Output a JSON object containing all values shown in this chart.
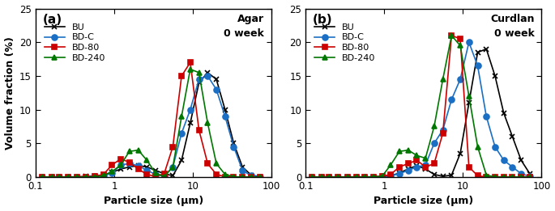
{
  "panel_a": {
    "title": "Agar\n0 week",
    "label": "(a)",
    "BU": {
      "x": [
        0.12,
        0.16,
        0.2,
        0.26,
        0.34,
        0.44,
        0.57,
        0.73,
        0.94,
        1.21,
        1.56,
        2.02,
        2.6,
        3.35,
        4.32,
        5.57,
        7.19,
        9.27,
        11.96,
        15.43,
        19.9,
        25.67,
        33.11,
        42.71,
        55.08,
        71.05
      ],
      "y": [
        0.0,
        0.0,
        0.0,
        0.0,
        0.05,
        0.1,
        0.15,
        0.35,
        0.7,
        1.2,
        1.5,
        1.7,
        1.5,
        1.0,
        0.5,
        0.2,
        2.5,
        8.0,
        14.0,
        15.5,
        14.5,
        10.0,
        5.0,
        1.5,
        0.3,
        0.05
      ]
    },
    "BD_C": {
      "x": [
        0.12,
        0.16,
        0.2,
        0.26,
        0.34,
        0.44,
        0.57,
        0.73,
        0.94,
        1.21,
        1.56,
        2.02,
        2.6,
        3.35,
        4.32,
        5.57,
        7.19,
        9.27,
        11.96,
        15.43,
        19.9,
        25.67,
        33.11,
        42.71,
        55.08,
        71.05
      ],
      "y": [
        0.0,
        0.0,
        0.0,
        0.0,
        0.0,
        0.05,
        0.1,
        0.2,
        0.6,
        1.8,
        2.0,
        1.7,
        1.0,
        0.4,
        0.15,
        1.5,
        6.5,
        10.0,
        14.5,
        15.0,
        13.0,
        9.0,
        4.5,
        1.0,
        0.2,
        0.05
      ]
    },
    "BD_80": {
      "x": [
        0.12,
        0.16,
        0.2,
        0.26,
        0.34,
        0.44,
        0.57,
        0.73,
        0.94,
        1.21,
        1.56,
        2.02,
        2.6,
        3.35,
        4.32,
        5.57,
        7.19,
        9.27,
        11.96,
        15.43,
        19.9,
        25.67,
        33.11,
        42.71,
        55.08,
        71.05
      ],
      "y": [
        0.0,
        0.0,
        0.0,
        0.0,
        0.0,
        0.05,
        0.1,
        0.4,
        1.8,
        2.7,
        2.2,
        1.2,
        0.4,
        0.1,
        0.5,
        4.5,
        15.0,
        17.0,
        7.0,
        2.0,
        0.4,
        0.05,
        0.0,
        0.0,
        0.0,
        0.0
      ]
    },
    "BD_240": {
      "x": [
        0.12,
        0.16,
        0.2,
        0.26,
        0.34,
        0.44,
        0.57,
        0.73,
        0.94,
        1.21,
        1.56,
        2.02,
        2.6,
        3.35,
        4.32,
        5.57,
        7.19,
        9.27,
        11.96,
        15.43,
        19.9,
        25.67,
        33.11,
        42.71,
        55.08,
        71.05
      ],
      "y": [
        0.0,
        0.0,
        0.0,
        0.0,
        0.0,
        0.0,
        0.05,
        0.2,
        0.8,
        1.8,
        3.8,
        4.0,
        2.5,
        0.6,
        0.05,
        1.5,
        9.0,
        16.0,
        15.5,
        8.0,
        2.0,
        0.4,
        0.05,
        0.0,
        0.0,
        0.0
      ]
    }
  },
  "panel_b": {
    "title": "Curdlan\n0 week",
    "label": "(b)",
    "BU": {
      "x": [
        0.12,
        0.16,
        0.2,
        0.26,
        0.34,
        0.44,
        0.57,
        0.73,
        0.94,
        1.21,
        1.56,
        2.02,
        2.6,
        3.35,
        4.32,
        5.57,
        7.19,
        9.27,
        11.96,
        15.43,
        19.9,
        25.67,
        33.11,
        42.71,
        55.08,
        71.05
      ],
      "y": [
        0.0,
        0.0,
        0.0,
        0.0,
        0.0,
        0.0,
        0.0,
        0.0,
        0.05,
        0.2,
        0.6,
        1.2,
        1.7,
        1.2,
        0.4,
        0.1,
        0.3,
        3.5,
        11.0,
        18.5,
        19.0,
        15.0,
        9.5,
        6.0,
        2.5,
        0.5
      ]
    },
    "BD_C": {
      "x": [
        0.12,
        0.16,
        0.2,
        0.26,
        0.34,
        0.44,
        0.57,
        0.73,
        0.94,
        1.21,
        1.56,
        2.02,
        2.6,
        3.35,
        4.32,
        5.57,
        7.19,
        9.27,
        11.96,
        15.43,
        19.9,
        25.67,
        33.11,
        42.71,
        55.08,
        71.05
      ],
      "y": [
        0.0,
        0.0,
        0.0,
        0.0,
        0.0,
        0.0,
        0.0,
        0.05,
        0.1,
        0.2,
        0.5,
        1.0,
        1.5,
        1.8,
        5.0,
        7.0,
        11.5,
        14.5,
        20.0,
        16.5,
        9.0,
        4.5,
        2.5,
        1.5,
        0.5,
        0.1
      ]
    },
    "BD_80": {
      "x": [
        0.12,
        0.16,
        0.2,
        0.26,
        0.34,
        0.44,
        0.57,
        0.73,
        0.94,
        1.21,
        1.56,
        2.02,
        2.6,
        3.35,
        4.32,
        5.57,
        7.19,
        9.27,
        11.96,
        15.43,
        19.9,
        25.67,
        33.11,
        42.71,
        55.08,
        71.05
      ],
      "y": [
        0.0,
        0.0,
        0.0,
        0.0,
        0.0,
        0.0,
        0.0,
        0.05,
        0.1,
        0.4,
        1.5,
        2.0,
        2.5,
        1.5,
        2.0,
        6.5,
        21.0,
        20.5,
        1.5,
        0.2,
        0.0,
        0.0,
        0.0,
        0.0,
        0.0,
        0.0
      ]
    },
    "BD_240": {
      "x": [
        0.12,
        0.16,
        0.2,
        0.26,
        0.34,
        0.44,
        0.57,
        0.73,
        0.94,
        1.21,
        1.56,
        2.02,
        2.6,
        3.35,
        4.32,
        5.57,
        7.19,
        9.27,
        11.96,
        15.43,
        19.9,
        25.67,
        33.11,
        42.71,
        55.08,
        71.05
      ],
      "y": [
        0.0,
        0.0,
        0.0,
        0.0,
        0.0,
        0.0,
        0.0,
        0.05,
        0.1,
        1.8,
        3.8,
        4.0,
        3.2,
        2.8,
        7.5,
        14.5,
        21.0,
        19.5,
        12.0,
        4.5,
        0.3,
        0.0,
        0.0,
        0.0,
        0.0,
        0.0
      ]
    }
  },
  "colors": {
    "BU": "#000000",
    "BD_C": "#1a6fc4",
    "BD_80": "#cc0000",
    "BD_240": "#007700"
  },
  "markers": {
    "BU": "x",
    "BD_C": "o",
    "BD_80": "s",
    "BD_240": "^"
  },
  "marker_sizes": {
    "BU": 5,
    "BD_C": 5,
    "BD_80": 4,
    "BD_240": 5
  },
  "legend_labels": [
    "BU",
    "BD-C",
    "BD-80",
    "BD-240"
  ],
  "ylabel": "Volume fraction (%)",
  "xlabel": "Particle size (μm)",
  "ylim": [
    0,
    25
  ],
  "xlim": [
    0.1,
    100
  ]
}
